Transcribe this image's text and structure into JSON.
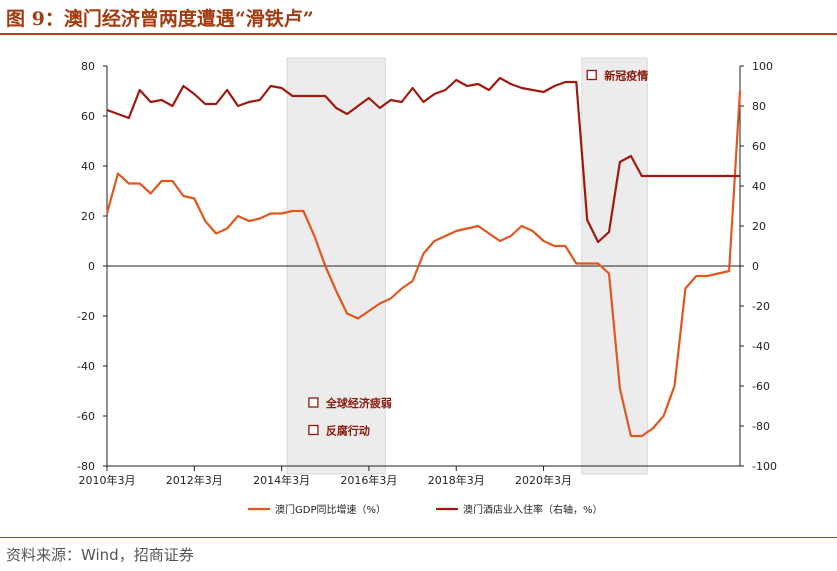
{
  "header": {
    "title": "图 9：澳门经济曾两度遭遇“滑铁卢”"
  },
  "footer": {
    "source": "资料来源：Wind，招商证券"
  },
  "chart_data": {
    "type": "line",
    "left_axis": {
      "ylim": [
        -80,
        80
      ],
      "ticks": [
        "80",
        "60",
        "40",
        "20",
        "0",
        "-20",
        "-40",
        "-60",
        "-80"
      ]
    },
    "right_axis": {
      "ylim": [
        -100,
        100
      ],
      "ticks": [
        "100",
        "80",
        "60",
        "40",
        "20",
        "0",
        "-20",
        "-40",
        "-60",
        "-80",
        "-100"
      ]
    },
    "x_tick_labels": [
      "2010年3月",
      "2012年3月",
      "2014年3月",
      "2016年3月",
      "2018年3月",
      "2020年3月"
    ],
    "x_range": [
      0,
      58
    ],
    "x_ticks": [
      0,
      8,
      16,
      24,
      32,
      40
    ],
    "shaded_ranges": [
      [
        16.5,
        25.5
      ],
      [
        43.5,
        49.5
      ]
    ],
    "annotations": [
      {
        "text": "全球经济疲弱",
        "x": 18.5,
        "y": -56
      },
      {
        "text": "反腐行动",
        "x": 18.5,
        "y": -67
      },
      {
        "text": "新冠疫情",
        "x": 44,
        "y": 75
      }
    ],
    "series": [
      {
        "name": "澳门GDP同比增速（%）",
        "axis": "left",
        "color": "#e0571f",
        "x": [
          0,
          1,
          2,
          3,
          4,
          5,
          6,
          7,
          8,
          9,
          10,
          11,
          12,
          13,
          14,
          15,
          16,
          17,
          18,
          19,
          20,
          21,
          22,
          23,
          24,
          25,
          26,
          27,
          28,
          29,
          30,
          31,
          32,
          33,
          34,
          35,
          36,
          37,
          38,
          39,
          40,
          41,
          42,
          43,
          44,
          45,
          46,
          47,
          48,
          49,
          50,
          51,
          52,
          53,
          54,
          55,
          56,
          57,
          58
        ],
        "values": [
          21,
          37,
          33,
          33,
          29,
          34,
          34,
          28,
          27,
          18,
          13,
          15,
          20,
          18,
          19,
          21,
          21,
          22,
          22,
          12,
          0,
          -10,
          -19,
          -21,
          -18,
          -15,
          -13,
          -9,
          -6,
          5,
          10,
          12,
          14,
          15,
          16,
          13,
          10,
          12,
          16,
          14,
          10,
          8,
          8,
          1,
          1,
          1,
          -3,
          -49,
          -68,
          -68,
          -65,
          -60,
          -48,
          -9,
          -4,
          -4,
          -3,
          -2,
          70
        ]
      },
      {
        "name": "澳门酒店业入住率（右轴，%）",
        "axis": "right",
        "color": "#9e1a10",
        "x": [
          0,
          1,
          2,
          3,
          4,
          5,
          6,
          7,
          8,
          9,
          10,
          11,
          12,
          13,
          14,
          15,
          16,
          17,
          18,
          19,
          20,
          21,
          22,
          23,
          24,
          25,
          26,
          27,
          28,
          29,
          30,
          31,
          32,
          33,
          34,
          35,
          36,
          37,
          38,
          39,
          40,
          41,
          42,
          43,
          44,
          45,
          46,
          47,
          48,
          49,
          50,
          51,
          52,
          53,
          54,
          55,
          56,
          57,
          58
        ],
        "values": [
          78,
          76,
          74,
          88,
          82,
          83,
          80,
          90,
          86,
          81,
          81,
          88,
          80,
          82,
          83,
          90,
          89,
          85,
          85,
          85,
          85,
          79,
          76,
          80,
          84,
          79,
          83,
          82,
          89,
          82,
          86,
          88,
          93,
          90,
          91,
          88,
          94,
          91,
          89,
          88,
          87,
          90,
          92,
          92,
          23,
          12,
          17,
          52,
          55,
          45,
          45,
          45,
          45,
          45,
          45,
          45,
          45,
          45,
          45
        ]
      }
    ]
  }
}
